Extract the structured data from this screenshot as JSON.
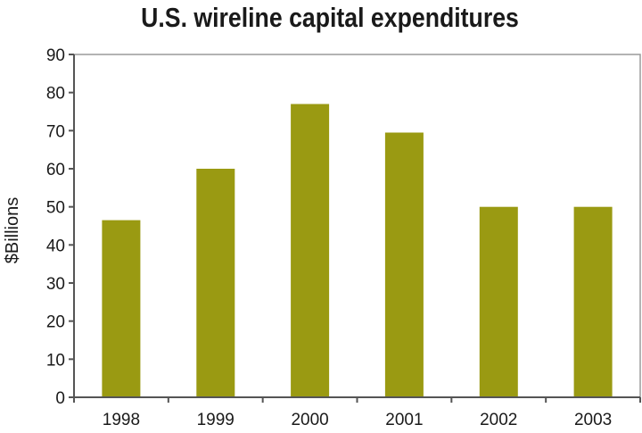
{
  "chart_data": {
    "type": "bar",
    "title": "U.S. wireline capital expenditures",
    "xlabel": "",
    "ylabel": "$Billions",
    "categories": [
      "1998",
      "1999",
      "2000",
      "2001",
      "2002",
      "2003"
    ],
    "values": [
      46.5,
      60,
      77,
      69.5,
      50,
      50
    ],
    "ylim": [
      0,
      90
    ],
    "yticks": [
      0,
      10,
      20,
      30,
      40,
      50,
      60,
      70,
      80,
      90
    ],
    "grid": false,
    "legend": "none",
    "colors": {
      "bar": "#9a9a12",
      "axis": "#555555",
      "plot_border": "#9a9a9a",
      "text": "#1a1a1a"
    }
  }
}
